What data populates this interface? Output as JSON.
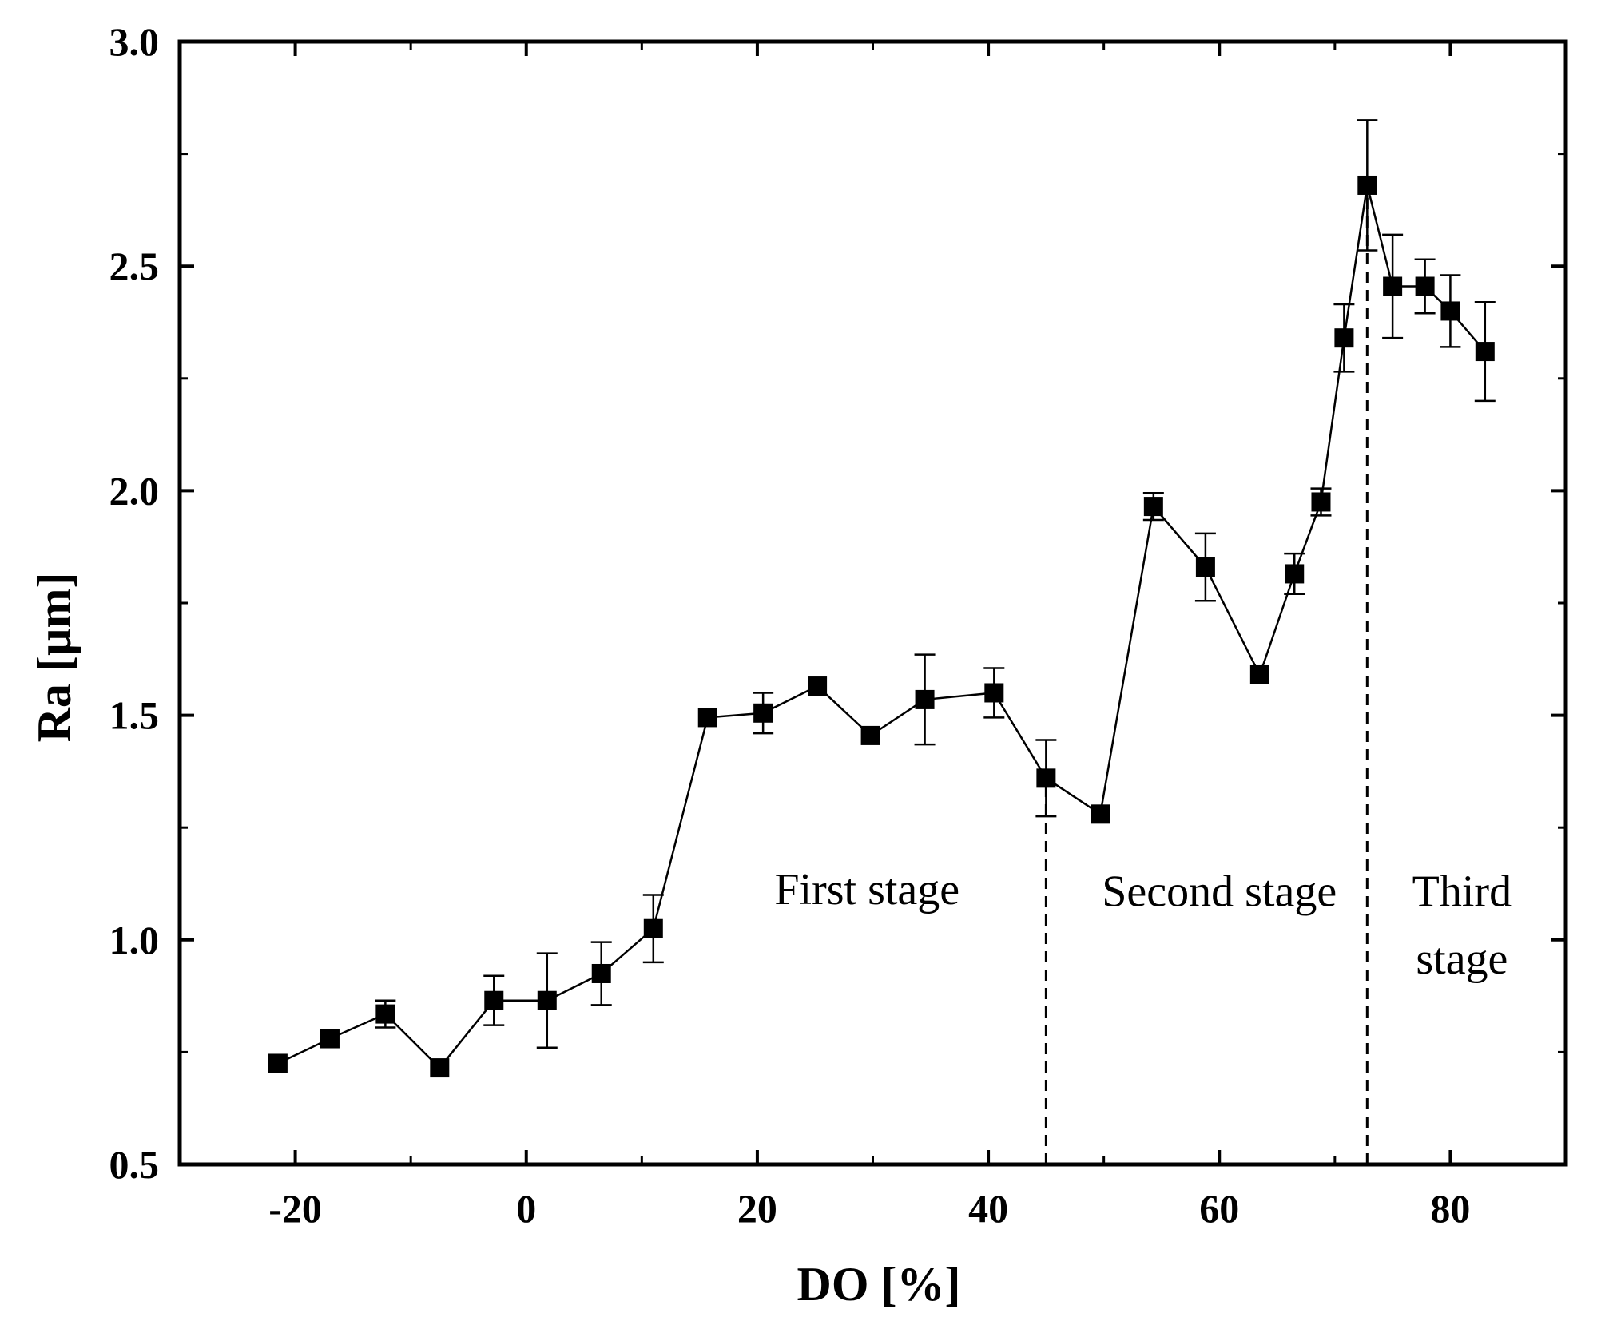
{
  "chart_data": {
    "type": "scatter",
    "title": "",
    "xlabel": "DO [%]",
    "ylabel": "Ra [µm]",
    "xlim": [
      -30,
      90
    ],
    "ylim": [
      0.5,
      3.0
    ],
    "xticks": [
      -20,
      0,
      20,
      40,
      60,
      80
    ],
    "xtick_labels": [
      "-20",
      "0",
      "20",
      "40",
      "60",
      "80"
    ],
    "yticks": [
      0.5,
      1.0,
      1.5,
      2.0,
      2.5,
      3.0
    ],
    "ytick_labels": [
      "0.5",
      "1.0",
      "1.5",
      "2.0",
      "2.5",
      "3.0"
    ],
    "grid": false,
    "series": [
      {
        "name": "Ra",
        "marker": "square",
        "line": true,
        "color": "#000000",
        "x": [
          -21.5,
          -17.0,
          -12.2,
          -7.5,
          -2.8,
          1.8,
          6.5,
          11.0,
          15.7,
          20.5,
          25.2,
          29.8,
          34.5,
          40.5,
          45.0,
          49.7,
          54.3,
          58.8,
          63.5,
          66.5,
          68.8,
          70.8,
          72.8,
          75.0,
          77.8,
          80.0,
          83.0
        ],
        "y": [
          0.725,
          0.78,
          0.835,
          0.715,
          0.865,
          0.865,
          0.925,
          1.025,
          1.495,
          1.505,
          1.565,
          1.455,
          1.535,
          1.55,
          1.36,
          1.28,
          1.965,
          1.83,
          1.59,
          1.815,
          1.975,
          2.34,
          2.68,
          2.455,
          2.455,
          2.4,
          2.31
        ],
        "error": [
          0.0,
          0.0,
          0.03,
          0.0,
          0.055,
          0.105,
          0.07,
          0.075,
          0.0,
          0.045,
          0.0,
          0.0,
          0.1,
          0.055,
          0.085,
          0.0,
          0.03,
          0.075,
          0.0,
          0.045,
          0.03,
          0.075,
          0.145,
          0.115,
          0.06,
          0.08,
          0.11
        ]
      }
    ],
    "vlines": [
      {
        "x": 45.0,
        "y_top": 1.36,
        "style": "dashed"
      },
      {
        "x": 72.8,
        "y_top": 2.68,
        "style": "dashed"
      }
    ],
    "annotations": [
      {
        "text": "First stage",
        "x": 29.5,
        "y": 1.08
      },
      {
        "text": "Second stage",
        "x": 60.0,
        "y": 1.075
      },
      {
        "text": "Third",
        "x": 81.0,
        "y": 1.075
      },
      {
        "text": "stage",
        "x": 81.0,
        "y": 0.925
      }
    ]
  }
}
